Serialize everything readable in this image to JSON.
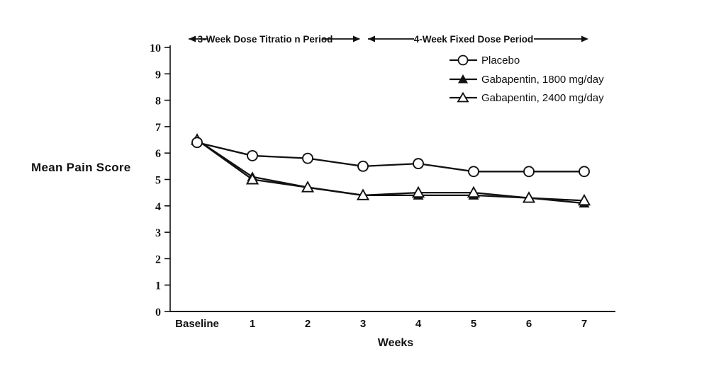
{
  "figure": {
    "background_color": "#ffffff",
    "ink_color": "#111111"
  },
  "annotations": {
    "titration_period_label": "3-Week Dose Titratio n Period",
    "fixed_period_label": "4-Week Fixed Dose Period"
  },
  "chart_data": {
    "type": "line",
    "title": "",
    "xlabel": "Weeks",
    "ylabel": "Mean Pain Score",
    "categories": [
      "Baseline",
      "1",
      "2",
      "3",
      "4",
      "5",
      "6",
      "7"
    ],
    "ylim": [
      0,
      10
    ],
    "yticks": [
      0,
      1,
      2,
      3,
      4,
      5,
      6,
      7,
      8,
      9,
      10
    ],
    "grid": false,
    "legend_position": "upper right",
    "series": [
      {
        "name": "Placebo",
        "marker": "open-circle",
        "color": "#111111",
        "values": [
          6.4,
          5.9,
          5.8,
          5.5,
          5.6,
          5.3,
          5.3,
          5.3
        ]
      },
      {
        "name": "Gabapentin, 1800 mg/day",
        "marker": "filled-triangle",
        "color": "#111111",
        "values": [
          6.5,
          5.1,
          4.7,
          4.4,
          4.4,
          4.4,
          4.3,
          4.1
        ]
      },
      {
        "name": "Gabapentin, 2400 mg/day",
        "marker": "open-triangle",
        "color": "#111111",
        "values": [
          6.5,
          5.0,
          4.7,
          4.4,
          4.5,
          4.5,
          4.3,
          4.2
        ]
      }
    ]
  }
}
